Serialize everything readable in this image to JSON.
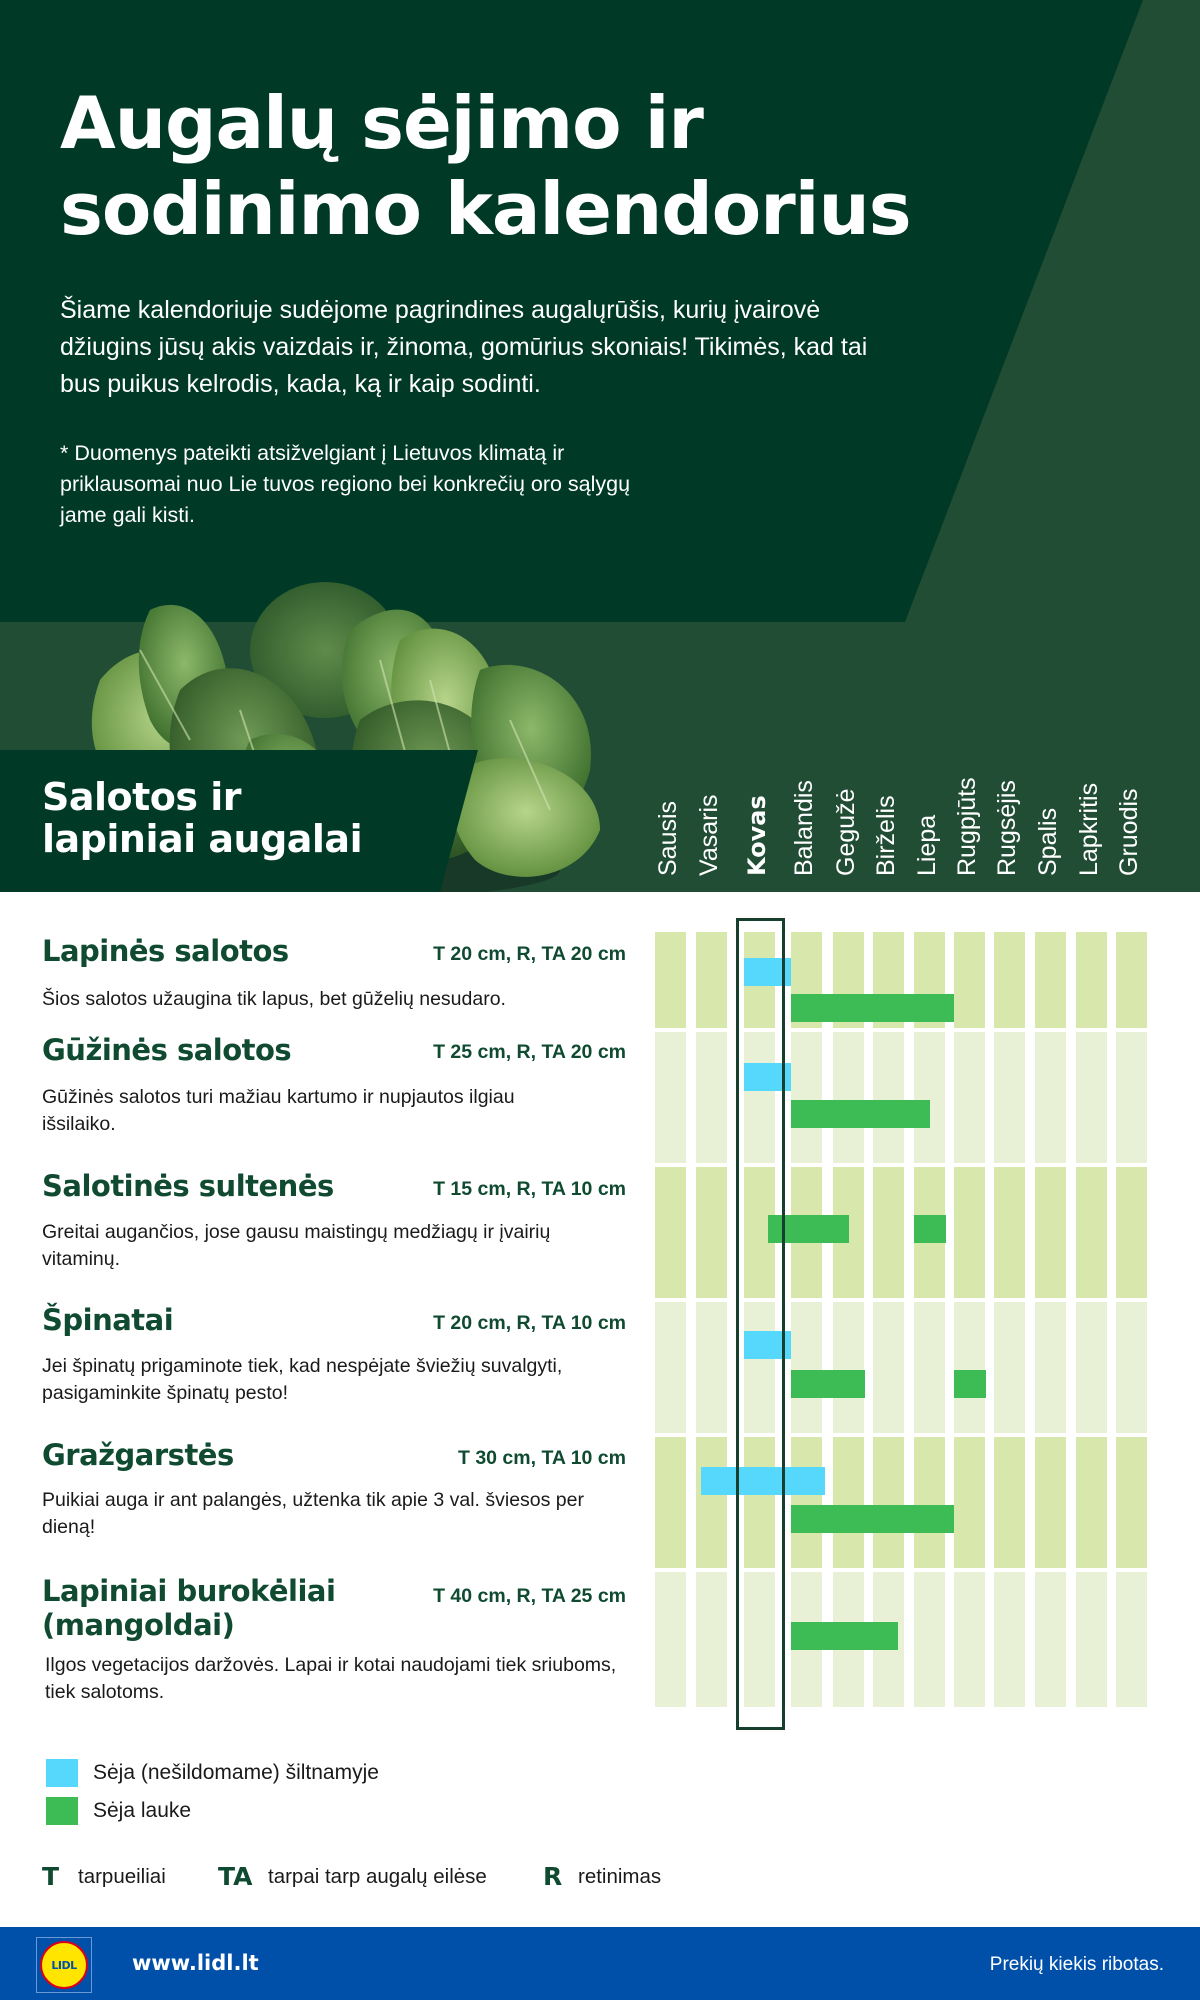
{
  "header": {
    "title_lines": [
      "Augalų sėjimo ir",
      "sodinimo kalendorius"
    ],
    "intro": "Šiame kalendoriuje sudėjome pagrindines augalųrūšis, kurių įvairovė džiugins jūsų akis vaizdais ir, žinoma, gomūrius skoniais! Tikimės, kad tai bus puikus kelrodis, kada, ką ir kaip sodinti.",
    "note": "* Duomenys pateikti atsižvelgiant į Lietuvos klimatą ir priklausomai nuo Lie tuvos regiono bei konkrečių oro sąlygų jame gali kisti."
  },
  "section": {
    "title_lines": [
      "Salotos ir",
      "lapiniai augalai"
    ]
  },
  "months": [
    "Sausis",
    "Vasaris",
    "Kovas",
    "Balandis",
    "Gegužė",
    "Birželis",
    "Liepa",
    "Rugpjūts",
    "Rugsėjis",
    "Spalis",
    "Lapkritis",
    "Gruodis"
  ],
  "highlighted_month_index": 2,
  "plants": [
    {
      "name_lines": [
        "Lapinės salotos"
      ],
      "spec": "T 20 cm, R, TA 20 cm",
      "desc": "Šios salotos užaugina tik lapus, bet gūželių nesudaro."
    },
    {
      "name_lines": [
        "Gūžinės salotos"
      ],
      "spec": "T 25 cm, R, TA 20 cm",
      "desc": "Gūžinės salotos turi mažiau kartumo ir nupjautos ilgiau išsilaiko."
    },
    {
      "name_lines": [
        "Salotinės sultenės"
      ],
      "spec": "T 15 cm, R, TA 10 cm",
      "desc": "Greitai augančios, jose gausu maistingų medžiagų ir įvairių vitaminų."
    },
    {
      "name_lines": [
        "Špinatai"
      ],
      "spec": "T 20 cm, R, TA 10 cm",
      "desc": "Jei špinatų prigaminote tiek, kad nespėjate šviežių suvalgyti, pasigaminkite špinatų pesto!"
    },
    {
      "name_lines": [
        "Gražgarstės"
      ],
      "spec": "T 30 cm, TA 10 cm",
      "desc": "Puikiai auga ir ant palangės, užtenka tik apie 3 val. šviesos per dieną!"
    },
    {
      "name_lines": [
        "Lapiniai burokėliai",
        "(mangoldai)"
      ],
      "spec": "T 40 cm, R, TA 25 cm",
      "desc": "Ilgos vegetacijos daržovės. Lapai ir kotai naudojami tiek sriuboms, tiek salotoms."
    }
  ],
  "legend": {
    "greenhouse": {
      "label": "Sėja (nešildomame) šiltnamyje",
      "color": "#55d8fb"
    },
    "outdoor": {
      "label": "Sėja lauke",
      "color": "#3dbb55"
    }
  },
  "abbreviations": [
    {
      "key": "T",
      "text": "tarpueiliai"
    },
    {
      "key": "TA",
      "text": "tarpai tarp augalų eilėse"
    },
    {
      "key": "R",
      "text": "retinimas"
    }
  ],
  "footer": {
    "logo_text": "LIDL",
    "url": "www.lidl.lt",
    "note": "Prekių kiekis ribotas."
  },
  "colors": {
    "dark_green": "#003926",
    "mid_green": "#214d35",
    "text_green": "#0f4a31",
    "grid_dark": "#d8e8ad",
    "grid_light": "#e8f0d6",
    "greenhouse": "#55d8fb",
    "outdoor": "#3dbb55",
    "footer_blue": "#0050aa"
  },
  "chart_data": {
    "type": "gantt",
    "title": "Salotos ir lapiniai augalai",
    "categories": [
      "Sausis",
      "Vasaris",
      "Kovas",
      "Balandis",
      "Gegužė",
      "Birželis",
      "Liepa",
      "Rugpjūts",
      "Rugsėjis",
      "Spalis",
      "Lapkritis",
      "Gruodis"
    ],
    "x_unit": "month (1 = Sausis, 12 = Gruodis; start/end as month fractions)",
    "highlight": "Kovas",
    "legend": [
      "Sėja (nešildomame) šiltnamyje",
      "Sėja lauke"
    ],
    "series": [
      {
        "plant": "Lapinės salotos",
        "greenhouse": [
          [
            3,
            4
          ]
        ],
        "outdoor": [
          [
            4,
            8
          ]
        ]
      },
      {
        "plant": "Gūžinės salotos",
        "greenhouse": [
          [
            3,
            4
          ]
        ],
        "outdoor": [
          [
            4,
            7.4
          ]
        ]
      },
      {
        "plant": "Salotinės sultenės",
        "greenhouse": [],
        "outdoor": [
          [
            3.5,
            5.4
          ],
          [
            7,
            7.8
          ]
        ]
      },
      {
        "plant": "Špinatai",
        "greenhouse": [
          [
            3,
            4
          ]
        ],
        "outdoor": [
          [
            4,
            5.8
          ],
          [
            8,
            8.8
          ]
        ]
      },
      {
        "plant": "Gražgarstės",
        "greenhouse": [
          [
            2.1,
            4.8
          ]
        ],
        "outdoor": [
          [
            4,
            8
          ]
        ]
      },
      {
        "plant": "Lapiniai burokėliai (mangoldai)",
        "greenhouse": [],
        "outdoor": [
          [
            4,
            6.6
          ]
        ]
      }
    ]
  }
}
